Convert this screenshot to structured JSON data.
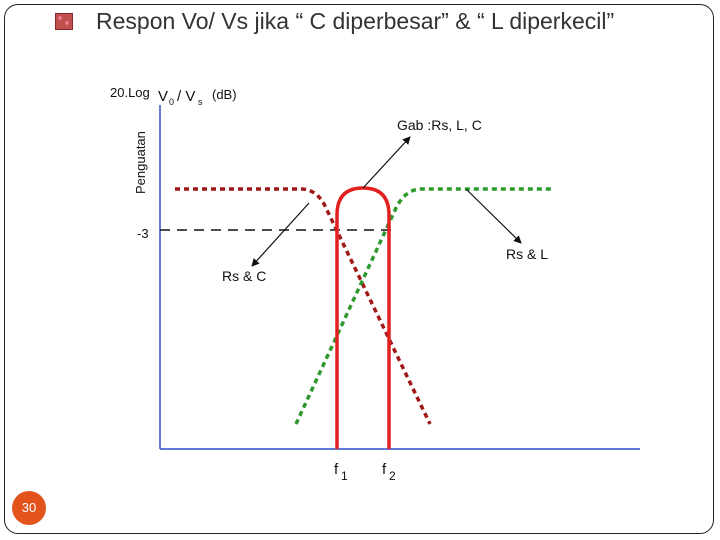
{
  "slide": {
    "title": "Respon Vo/ Vs jika “ C diperbesar” & “ L diperkecil”",
    "page_number": "30"
  },
  "diagram": {
    "y_label_main": "20.Log",
    "y_label_v0": "V",
    "y_label_v0_sub": "0",
    "y_label_slash": "/ V",
    "y_label_vs_sub": "s",
    "y_label_unit": "(dB)",
    "y_axis_title": "Penguatan",
    "minus3_label": "-3",
    "gab_label": "Gab :Rs, L, C",
    "rsc_label": "Rs & C",
    "rsl_label": "Rs & L",
    "f1_label": "f",
    "f1_sub": "1",
    "f2_label": "f",
    "f2_sub": "2"
  },
  "colors": {
    "axis": "#2b4fc7",
    "rs_c_curve": "#a01818",
    "rs_l_curve": "#2e9a2e",
    "gab_curve": "#e22020",
    "dashed_ref": "#111111",
    "page_badge": "#e2541b"
  }
}
